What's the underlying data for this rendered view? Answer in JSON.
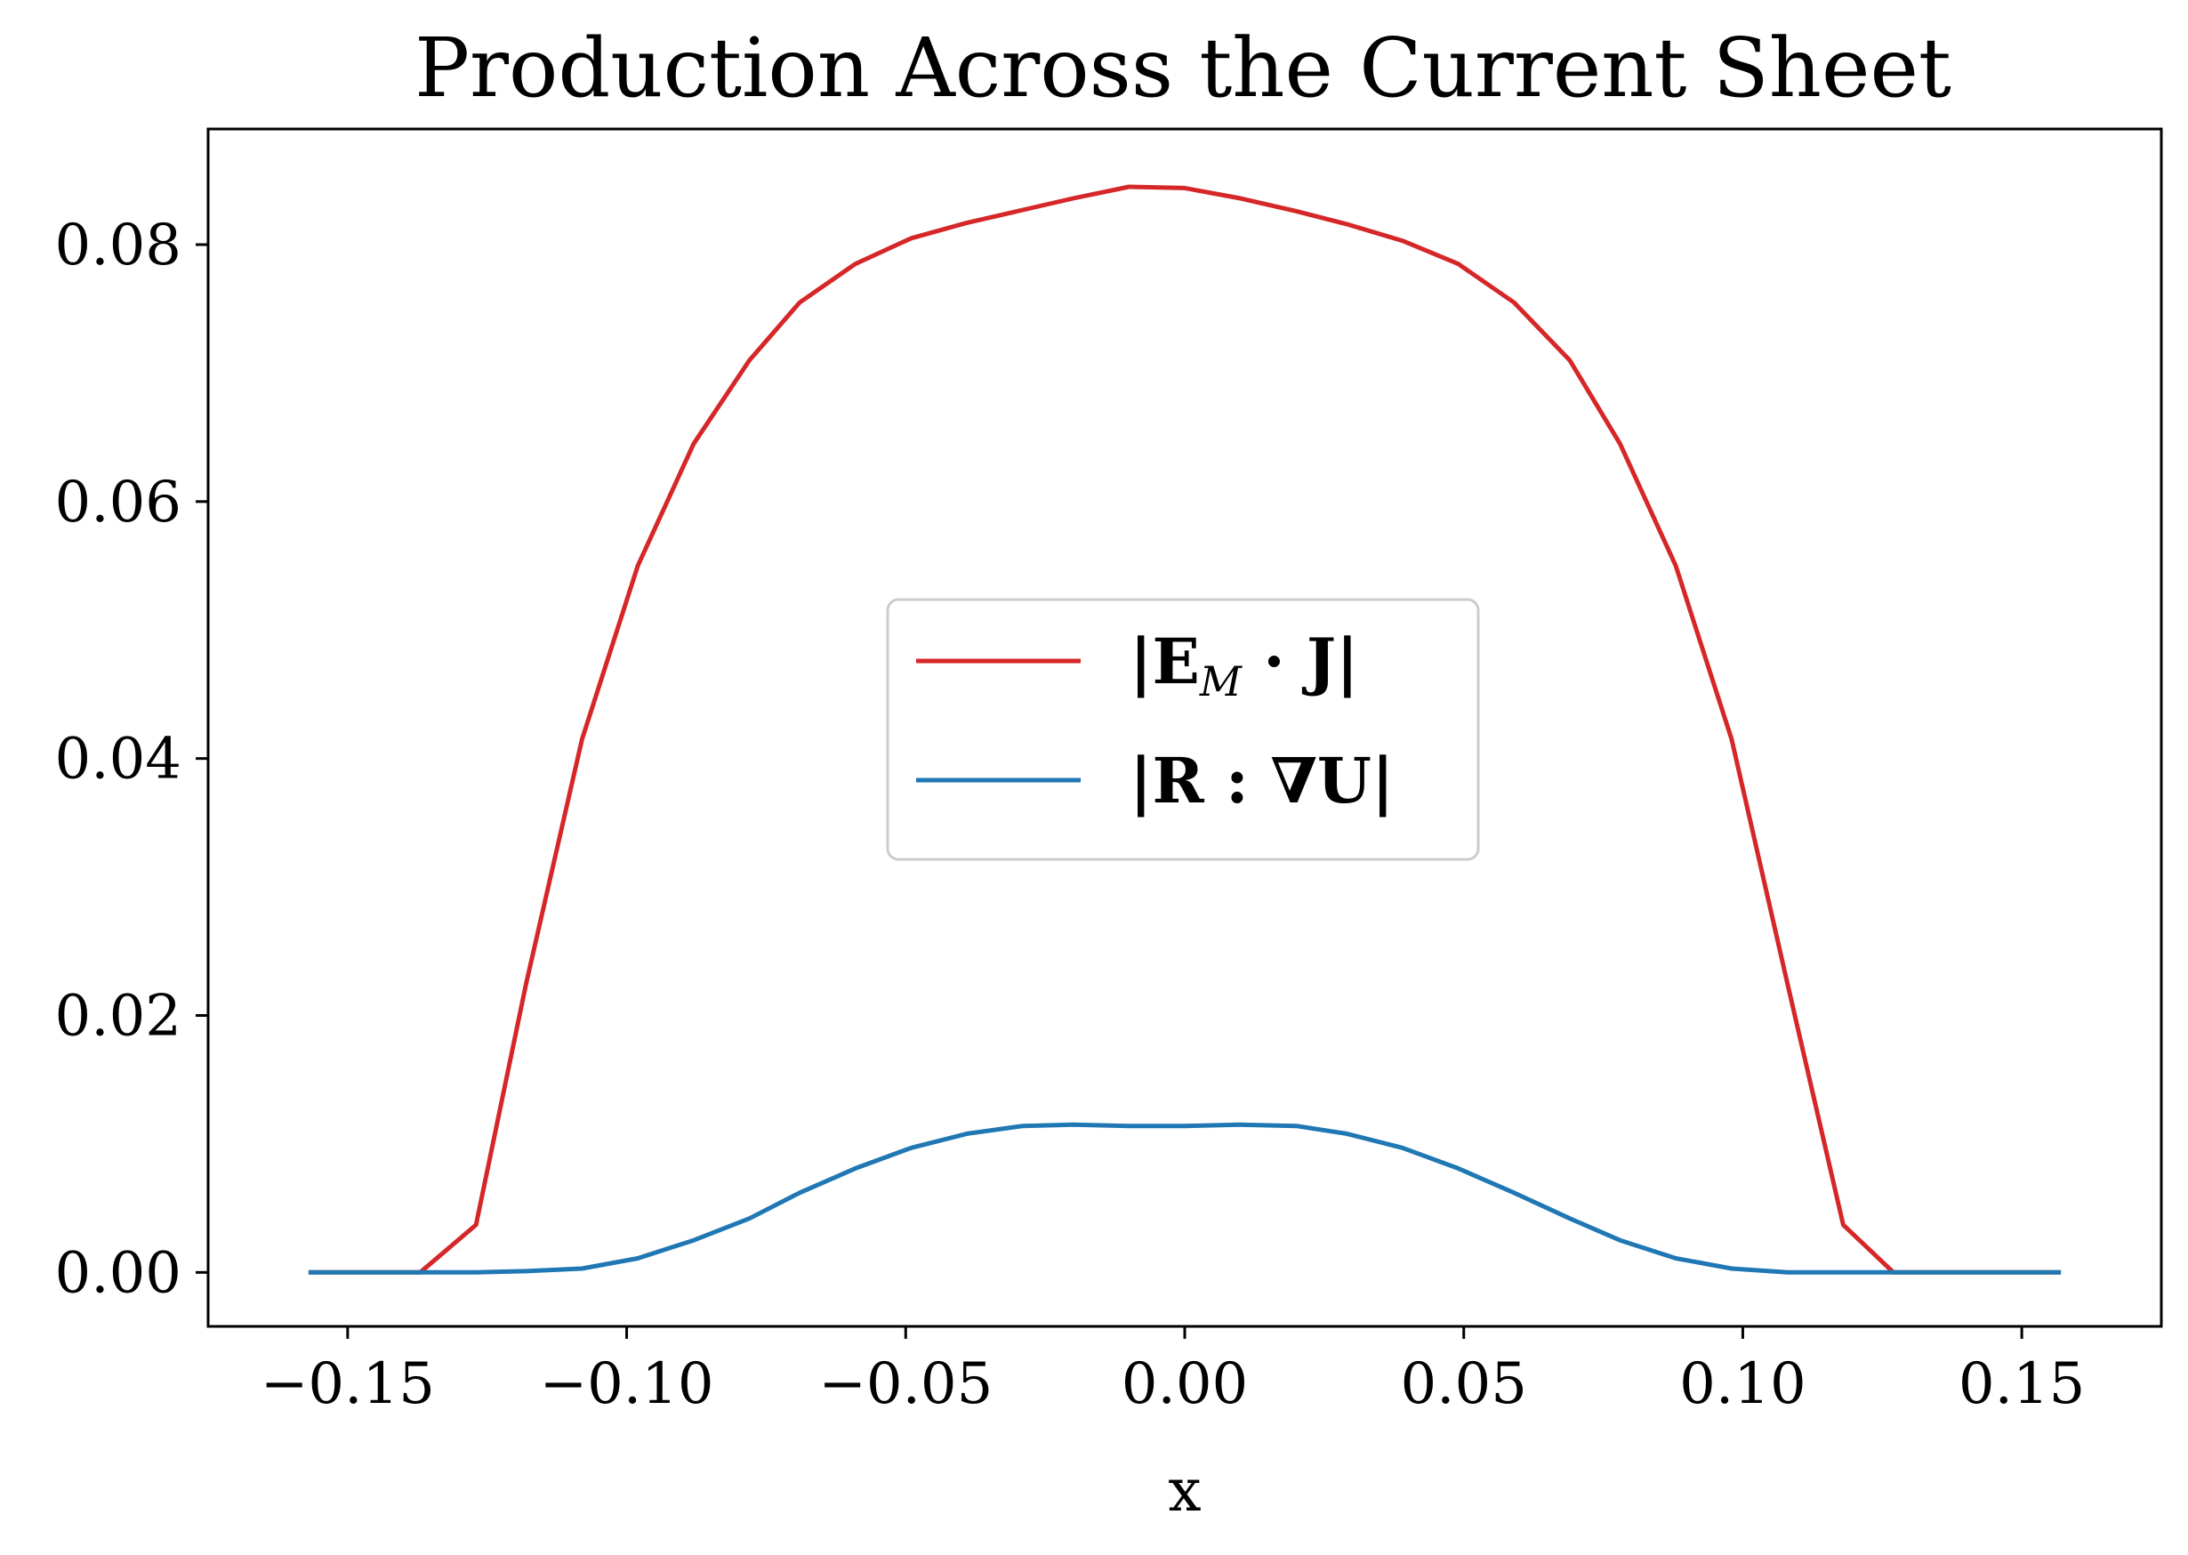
{
  "chart_data": {
    "type": "line",
    "title": "Production Across the Current Sheet",
    "xlabel": "x",
    "ylabel": "",
    "xlim": [
      -0.175,
      0.175
    ],
    "ylim": [
      -0.0042,
      0.089
    ],
    "xticks": [
      -0.15,
      -0.1,
      -0.05,
      0.0,
      0.05,
      0.1,
      0.15
    ],
    "xtick_labels": [
      "−0.15",
      "−0.10",
      "−0.05",
      "0.00",
      "0.05",
      "0.10",
      "0.15"
    ],
    "yticks": [
      0.0,
      0.02,
      0.04,
      0.06,
      0.08
    ],
    "ytick_labels": [
      "0.00",
      "0.02",
      "0.04",
      "0.06",
      "0.08"
    ],
    "grid": false,
    "legend_position": "center",
    "x": [
      -0.157,
      -0.147,
      -0.137,
      -0.127,
      -0.118,
      -0.108,
      -0.098,
      -0.088,
      -0.078,
      -0.069,
      -0.059,
      -0.049,
      -0.039,
      -0.029,
      -0.02,
      -0.01,
      0.0,
      0.01,
      0.02,
      0.029,
      0.039,
      0.049,
      0.059,
      0.069,
      0.078,
      0.088,
      0.098,
      0.108,
      0.118,
      0.127,
      0.137,
      0.147,
      0.157
    ],
    "series": [
      {
        "name": "|E_M · J|",
        "color": "#d62728",
        "values": [
          0.0,
          0.0,
          0.0,
          0.0037,
          0.0225,
          0.0415,
          0.055,
          0.0645,
          0.071,
          0.0755,
          0.0785,
          0.0805,
          0.0817,
          0.0827,
          0.0836,
          0.0845,
          0.0844,
          0.0836,
          0.0826,
          0.0816,
          0.0803,
          0.0785,
          0.0755,
          0.071,
          0.0645,
          0.055,
          0.0415,
          0.0225,
          0.0037,
          0.0,
          0.0,
          0.0,
          0.0
        ]
      },
      {
        "name": "|R : ∇U|",
        "color": "#1f77b4",
        "values": [
          0.0,
          0.0,
          0.0,
          0.0,
          0.0001,
          0.0003,
          0.0011,
          0.0025,
          0.0042,
          0.0062,
          0.0081,
          0.0097,
          0.0108,
          0.0114,
          0.0115,
          0.0114,
          0.0114,
          0.0115,
          0.0114,
          0.0108,
          0.0097,
          0.0081,
          0.0062,
          0.0042,
          0.0025,
          0.0011,
          0.0003,
          0.0,
          0.0,
          0.0,
          0.0,
          0.0,
          0.0
        ]
      }
    ],
    "legend": {
      "red": {
        "prefix": "|E",
        "sub": "M",
        "suffix": " · J|"
      },
      "blue": {
        "text": "|R : ∇U|"
      }
    }
  }
}
